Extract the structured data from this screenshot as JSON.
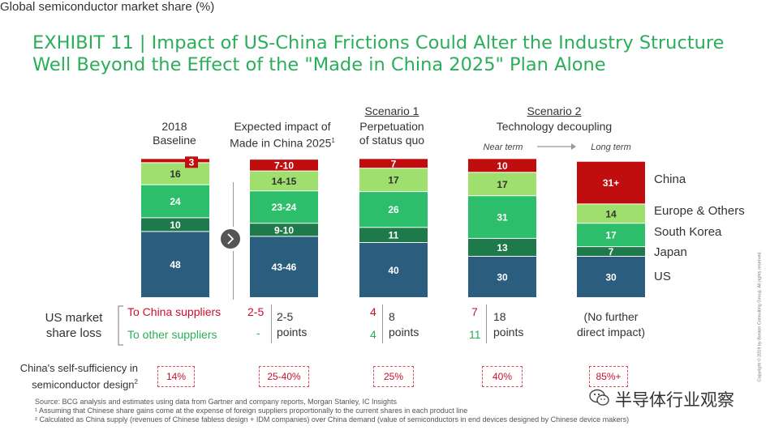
{
  "title": "EXHIBIT 11 | Impact of US-China Frictions Could Alter the Industry Structure Well Beyond the Effect of the \"Made in China 2025\" Plan Alone",
  "subtitle": "Global semiconductor market share (%)",
  "headers": {
    "baseline": "2018\nBaseline",
    "mic": "Expected impact of\nMade in China 2025",
    "mic_sup": "1",
    "s1_title": "Scenario 1",
    "s1_sub": "Perpetuation\nof status quo",
    "s2_title": "Scenario 2",
    "s2_sub": "Technology decoupling",
    "near": "Near term",
    "long": "Long term"
  },
  "colors": {
    "china": "#c00d0d",
    "europe": "#9fdf6e",
    "korea": "#2dbe6c",
    "japan": "#1e7a4b",
    "us": "#2a5d7e"
  },
  "chart_data": {
    "type": "bar",
    "stacked": true,
    "categories": [
      "2018 Baseline",
      "Expected impact of Made in China 2025",
      "Scenario 1",
      "Scenario 2 Near term",
      "Scenario 2 Long term"
    ],
    "series": [
      {
        "name": "US",
        "values": [
          48,
          44.5,
          40,
          30,
          30
        ],
        "labels": [
          "48",
          "43-46",
          "40",
          "30",
          "30"
        ]
      },
      {
        "name": "Japan",
        "values": [
          10,
          9.5,
          11,
          13,
          7
        ],
        "labels": [
          "10",
          "9-10",
          "11",
          "13",
          "7"
        ]
      },
      {
        "name": "South Korea",
        "values": [
          24,
          23.5,
          26,
          31,
          17
        ],
        "labels": [
          "24",
          "23-24",
          "26",
          "31",
          "17"
        ]
      },
      {
        "name": "Europe & Others",
        "values": [
          16,
          14.5,
          17,
          17,
          14
        ],
        "labels": [
          "16",
          "14-15",
          "17",
          "17",
          "14"
        ]
      },
      {
        "name": "China",
        "values": [
          3,
          8.5,
          7,
          10,
          31
        ],
        "labels": [
          "3",
          "7-10",
          "7",
          "10",
          "31+"
        ]
      }
    ]
  },
  "legend": [
    "China",
    "Europe & Others",
    "South Korea",
    "Japan",
    "US"
  ],
  "share_loss": {
    "label": "US market\nshare loss",
    "to_china_label": "To China suppliers",
    "to_other_label": "To other suppliers",
    "cols": [
      {
        "china": "2-5",
        "other": "-",
        "total": "2-5\npoints"
      },
      {
        "china": "4",
        "other": "4",
        "total": "8\npoints"
      },
      {
        "china": "7",
        "other": "11",
        "total": "18\npoints"
      },
      {
        "text": "(No further\ndirect impact)"
      }
    ]
  },
  "self_sufficiency": {
    "label": "China's self-sufficiency in\nsemiconductor design",
    "label_sup": "2",
    "values": [
      "14%",
      "25-40%",
      "25%",
      "40%",
      "85%+"
    ]
  },
  "footnotes": [
    "Source: BCG analysis and estimates using data from Gartner and company reports, Morgan Stanley, IC Insights",
    "¹ Assuming that Chinese share gains come at the expense of foreign suppliers proportionally to the current shares in each product line",
    "² Calculated as China supply (revenues of Chinese fabless design + IDM companies) over China demand (value of semiconductors in end devices designed by Chinese device makers)"
  ],
  "watermark": "半导体行业观察",
  "copyright": "Copyright © 2019 by Boston Consulting Group. All rights reserved."
}
